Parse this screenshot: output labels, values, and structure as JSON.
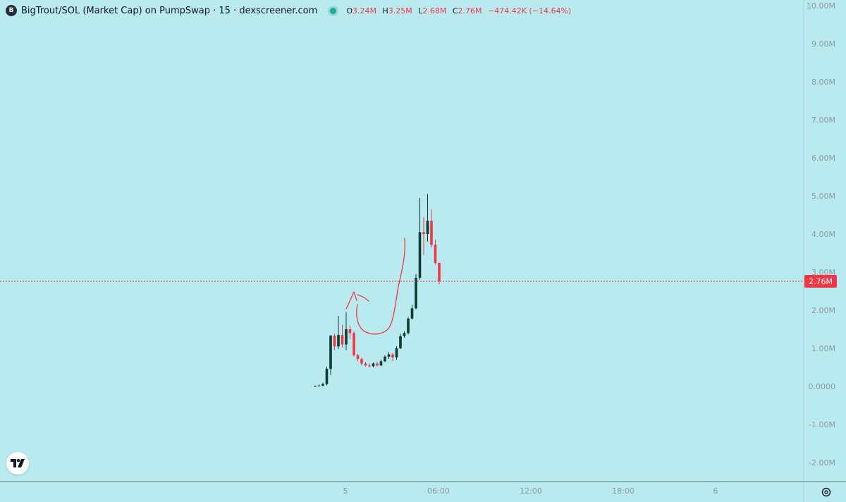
{
  "legend": {
    "icon_letter": "B",
    "title": "BigTrout/SOL (Market Cap) on PumpSwap · 15 · dexscreener.com",
    "o_label": "O",
    "o_value": "3.24M",
    "h_label": "H",
    "h_value": "3.25M",
    "l_label": "L",
    "l_value": "2.68M",
    "c_label": "C",
    "c_value": "2.76M",
    "change": "−474.42K (−14.64%)"
  },
  "colors": {
    "background": "#b8eaf0",
    "up": "#0e3b31",
    "down": "#f23645",
    "axis_text": "#8b9aa4",
    "price_line": "#f23645"
  },
  "icons": {
    "logo": "tradingview-logo-icon",
    "settings": "settings-icon"
  },
  "chart_data": {
    "type": "candlestick",
    "y_axis": {
      "unit": "market cap",
      "ticks": [
        "10.00M",
        "9.00M",
        "8.00M",
        "7.00M",
        "6.00M",
        "5.00M",
        "4.00M",
        "3.00M",
        "2.00M",
        "1.00M",
        "0.0000",
        "-1.00M",
        "-2.00M"
      ],
      "range": [
        -2.0,
        10.0
      ],
      "scale": "millions"
    },
    "x_axis": {
      "ticks": [
        "5",
        "06:00",
        "12:00",
        "18:00",
        "6"
      ]
    },
    "last_price": {
      "value": 2.76,
      "label": "2.76M"
    },
    "grid": false,
    "candles": [
      {
        "o": 0.01,
        "h": 0.02,
        "l": 0.0,
        "c": 0.01
      },
      {
        "o": 0.01,
        "h": 0.05,
        "l": 0.0,
        "c": 0.02
      },
      {
        "o": 0.02,
        "h": 0.1,
        "l": 0.0,
        "c": 0.06
      },
      {
        "o": 0.06,
        "h": 0.52,
        "l": 0.02,
        "c": 0.46
      },
      {
        "o": 0.46,
        "h": 1.35,
        "l": 0.3,
        "c": 1.33
      },
      {
        "o": 1.33,
        "h": 1.38,
        "l": 0.95,
        "c": 1.05
      },
      {
        "o": 1.05,
        "h": 1.85,
        "l": 0.98,
        "c": 1.35
      },
      {
        "o": 1.35,
        "h": 1.62,
        "l": 1.02,
        "c": 1.1
      },
      {
        "o": 1.1,
        "h": 1.95,
        "l": 0.95,
        "c": 1.5
      },
      {
        "o": 1.5,
        "h": 1.6,
        "l": 1.25,
        "c": 1.4
      },
      {
        "o": 1.4,
        "h": 1.45,
        "l": 0.78,
        "c": 0.82
      },
      {
        "o": 0.82,
        "h": 0.86,
        "l": 0.66,
        "c": 0.72
      },
      {
        "o": 0.72,
        "h": 0.76,
        "l": 0.55,
        "c": 0.6
      },
      {
        "o": 0.6,
        "h": 0.64,
        "l": 0.52,
        "c": 0.55
      },
      {
        "o": 0.55,
        "h": 0.6,
        "l": 0.5,
        "c": 0.53
      },
      {
        "o": 0.53,
        "h": 0.63,
        "l": 0.5,
        "c": 0.6
      },
      {
        "o": 0.6,
        "h": 0.65,
        "l": 0.52,
        "c": 0.55
      },
      {
        "o": 0.55,
        "h": 0.7,
        "l": 0.53,
        "c": 0.66
      },
      {
        "o": 0.66,
        "h": 0.82,
        "l": 0.64,
        "c": 0.78
      },
      {
        "o": 0.78,
        "h": 0.9,
        "l": 0.72,
        "c": 0.84
      },
      {
        "o": 0.84,
        "h": 0.88,
        "l": 0.66,
        "c": 0.76
      },
      {
        "o": 0.76,
        "h": 1.05,
        "l": 0.7,
        "c": 1.0
      },
      {
        "o": 1.0,
        "h": 1.38,
        "l": 0.98,
        "c": 1.32
      },
      {
        "o": 1.32,
        "h": 1.45,
        "l": 1.28,
        "c": 1.4
      },
      {
        "o": 1.4,
        "h": 1.82,
        "l": 1.36,
        "c": 1.78
      },
      {
        "o": 1.78,
        "h": 2.15,
        "l": 1.75,
        "c": 2.05
      },
      {
        "o": 2.05,
        "h": 2.95,
        "l": 2.02,
        "c": 2.85
      },
      {
        "o": 2.85,
        "h": 4.95,
        "l": 2.8,
        "c": 4.05
      },
      {
        "o": 4.05,
        "h": 4.45,
        "l": 3.45,
        "c": 4.0
      },
      {
        "o": 4.0,
        "h": 5.05,
        "l": 3.8,
        "c": 4.35
      },
      {
        "o": 4.35,
        "h": 4.65,
        "l": 3.65,
        "c": 3.72
      },
      {
        "o": 3.72,
        "h": 3.85,
        "l": 3.2,
        "c": 3.24
      },
      {
        "o": 3.24,
        "h": 3.25,
        "l": 2.68,
        "c": 2.76
      }
    ]
  }
}
